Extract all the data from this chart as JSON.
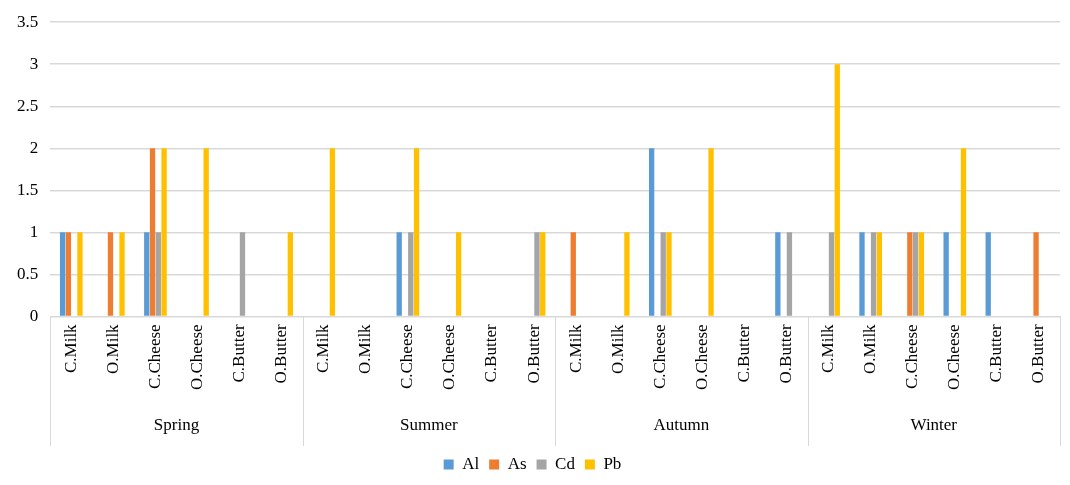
{
  "chart_data": {
    "type": "bar",
    "categories": [
      "C.Milk",
      "O.Milk",
      "C.Cheese",
      "O.Cheese",
      "C.Butter",
      "O.Butter",
      "C.Milk",
      "O.Milk",
      "C.Cheese",
      "O.Cheese",
      "C.Butter",
      "O.Butter",
      "C.Milk",
      "O.Milk",
      "C.Cheese",
      "O.Cheese",
      "C.Butter",
      "O.Butter",
      "C.Milk",
      "O.Milk",
      "C.Cheese",
      "O.Cheese",
      "C.Butter",
      "O.Butter"
    ],
    "annotations": [
      "Spring",
      "Summer",
      "Autumn",
      "Winter"
    ],
    "series": [
      {
        "name": "Al",
        "color": "#5b9bd5",
        "values": [
          1,
          0,
          1,
          0,
          0,
          0,
          0,
          0,
          1,
          0,
          0,
          0,
          0,
          0,
          2,
          0,
          0,
          1,
          0,
          1,
          0,
          1,
          1,
          0
        ]
      },
      {
        "name": "As",
        "color": "#ed7d31",
        "values": [
          1,
          1,
          2,
          0,
          0,
          0,
          0,
          0,
          0,
          0,
          0,
          0,
          1,
          0,
          0,
          0,
          0,
          0,
          0,
          0,
          1,
          0,
          0,
          1
        ]
      },
      {
        "name": "Cd",
        "color": "#a5a5a5",
        "values": [
          0,
          0,
          1,
          0,
          1,
          0,
          0,
          0,
          1,
          0,
          0,
          1,
          0,
          0,
          1,
          0,
          0,
          1,
          1,
          1,
          1,
          0,
          0,
          0
        ]
      },
      {
        "name": "Pb",
        "color": "#ffc000",
        "values": [
          1,
          1,
          2,
          2,
          0,
          1,
          2,
          0,
          2,
          1,
          0,
          1,
          0,
          1,
          1,
          2,
          0,
          0,
          3,
          1,
          1,
          2,
          0,
          0
        ]
      }
    ],
    "ylim": [
      0,
      3.5
    ],
    "yticks": [
      0,
      0.5,
      1,
      1.5,
      2,
      2.5,
      3,
      3.5
    ],
    "grid": "y",
    "legend": "bottom"
  }
}
